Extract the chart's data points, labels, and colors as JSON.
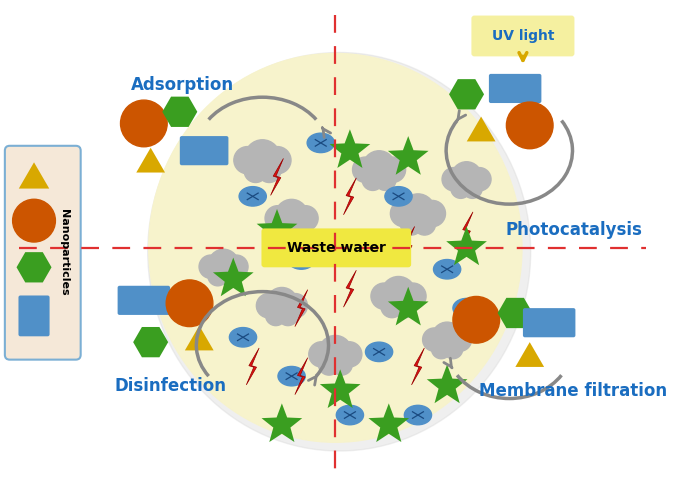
{
  "bg_color": "#ffffff",
  "ellipse_color": "#f7f3cc",
  "dashed_color": "#e03030",
  "wastewater_label": "Waste water",
  "wastewater_bg": "#f0e840",
  "labels": {
    "adsorption": "Adsorption",
    "photocatalysis": "Photocatalysis",
    "disinfection": "Disinfection",
    "membrane": "Membrane filtration",
    "nanoparticles": "Nanoparticles",
    "uv": "UV light"
  },
  "label_color": "#1a6dc0",
  "orange_color": "#cc5500",
  "green_color": "#3a9e20",
  "blue_color": "#5090c8",
  "yellow_color": "#d8a800",
  "gray_color": "#a0a0a0",
  "red_color": "#dd1111",
  "nanobox_bg": "#f5e8d8",
  "nanobox_border": "#7bafd4",
  "arrow_color": "#888888",
  "uv_box_color": "#f5f0a0"
}
